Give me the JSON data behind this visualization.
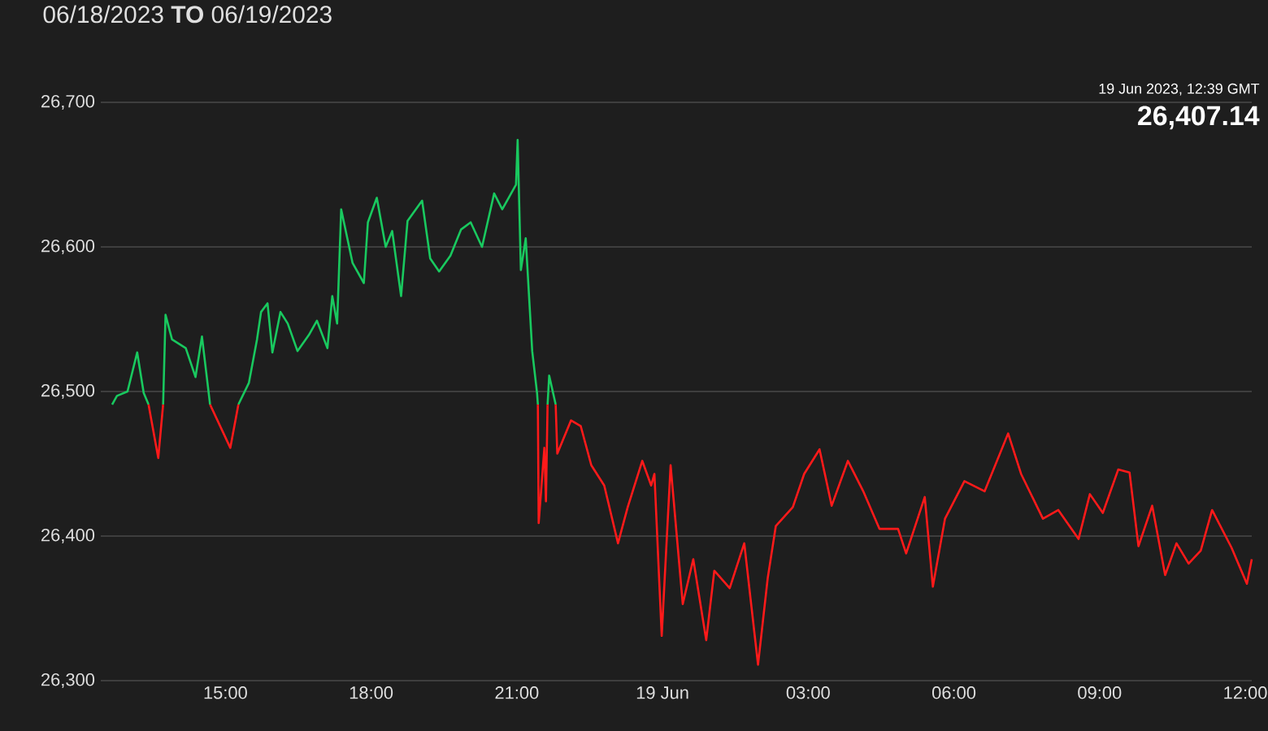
{
  "chart_data": {
    "type": "line",
    "title": "06/18/2023 **TO** 06/19/2023",
    "annotations": [
      "19 Jun 2023, 12:39 GMT",
      "26,407.14"
    ],
    "xlim": [
      "2023-06-18T12:26",
      "2023-06-19T12:08"
    ],
    "ylim": [
      26300,
      26700
    ],
    "xticks": [
      {
        "value": "2023-06-18T15:00",
        "label": "15:00"
      },
      {
        "value": "2023-06-18T18:00",
        "label": "18:00"
      },
      {
        "value": "2023-06-18T21:00",
        "label": "21:00"
      },
      {
        "value": "2023-06-19T00:00",
        "label": "19 Jun"
      },
      {
        "value": "2023-06-19T03:00",
        "label": "03:00"
      },
      {
        "value": "2023-06-19T06:00",
        "label": "06:00"
      },
      {
        "value": "2023-06-19T09:00",
        "label": "09:00"
      },
      {
        "value": "2023-06-19T12:00",
        "label": "12:00"
      }
    ],
    "yticks": [
      {
        "value": 26300,
        "label": "26,300"
      },
      {
        "value": 26400,
        "label": "26,400"
      },
      {
        "value": 26500,
        "label": "26,500"
      },
      {
        "value": 26600,
        "label": "26,600"
      },
      {
        "value": 26700,
        "label": "26,700"
      }
    ],
    "grid": "y",
    "series": [
      {
        "color": "#19c95f",
        "x": [
          "2023-06-18T12:40",
          "2023-06-18T12:46",
          "2023-06-18T12:59",
          "2023-06-18T13:11",
          "2023-06-18T13:19",
          "2023-06-18T13:25",
          "2023-06-18T13:34",
          "2023-06-18T13:43",
          "2023-06-18T13:46",
          "2023-06-18T13:54",
          "2023-06-18T14:11",
          "2023-06-18T14:23",
          "2023-06-18T14:31",
          "2023-06-18T14:41",
          "2023-06-18T14:58",
          "2023-06-18T15:16",
          "2023-06-18T15:29",
          "2023-06-18T15:39",
          "2023-06-18T15:44",
          "2023-06-18T15:52",
          "2023-06-18T15:58",
          "2023-06-18T16:08",
          "2023-06-18T16:17",
          "2023-06-18T16:29",
          "2023-06-18T16:43",
          "2023-06-18T16:53",
          "2023-06-18T17:06",
          "2023-06-18T17:12",
          "2023-06-18T17:18",
          "2023-06-18T17:23",
          "2023-06-18T17:37",
          "2023-06-18T17:51",
          "2023-06-18T17:56",
          "2023-06-18T18:07",
          "2023-06-18T18:18",
          "2023-06-18T18:26",
          "2023-06-18T18:37",
          "2023-06-18T18:45",
          "2023-06-18T19:03",
          "2023-06-18T19:13",
          "2023-06-18T19:24",
          "2023-06-18T19:38",
          "2023-06-18T19:51",
          "2023-06-18T20:03",
          "2023-06-18T20:17",
          "2023-06-18T20:32",
          "2023-06-18T20:42",
          "2023-06-18T20:59",
          "2023-06-18T21:01",
          "2023-06-18T21:05",
          "2023-06-18T21:11",
          "2023-06-18T21:19",
          "2023-06-18T21:25",
          "2023-06-18T21:26",
          "2023-06-18T21:32",
          "2023-06-18T21:38",
          "2023-06-18T21:40",
          "2023-06-18T21:48"
        ],
        "values": [
          26491,
          26497,
          26500,
          26527,
          26499,
          26491,
          null,
          26491,
          26553,
          26536,
          26530,
          26510,
          26538,
          26491,
          null,
          26491,
          26506,
          26536,
          26555,
          26561,
          26527,
          26555,
          26547,
          26528,
          26539,
          26549,
          26530,
          26566,
          26547,
          26626,
          26589,
          26575,
          26617,
          26634,
          26600,
          26611,
          26566,
          26618,
          26632,
          26592,
          26583,
          26594,
          26612,
          26617,
          26600,
          26637,
          26626,
          26643,
          26674,
          26584,
          26606,
          26528,
          26499,
          26491,
          null,
          26491,
          26511,
          26491
        ]
      },
      {
        "color": "#ff1a1a",
        "x": [
          "2023-06-18T13:25",
          "2023-06-18T13:37",
          "2023-06-18T13:43",
          "2023-06-18T14:11",
          "2023-06-18T14:41",
          "2023-06-18T15:06",
          "2023-06-18T15:16",
          "2023-06-18T18:00",
          "2023-06-18T21:26",
          "2023-06-18T21:27",
          "2023-06-18T21:34",
          "2023-06-18T21:36",
          "2023-06-18T21:38",
          "2023-06-18T21:39",
          "2023-06-18T21:48",
          "2023-06-18T21:50",
          "2023-06-18T22:07",
          "2023-06-18T22:19",
          "2023-06-18T22:32",
          "2023-06-18T22:48",
          "2023-06-18T23:05",
          "2023-06-18T23:17",
          "2023-06-18T23:35",
          "2023-06-18T23:46",
          "2023-06-18T23:50",
          "2023-06-18T23:59",
          "2023-06-19T00:10",
          "2023-06-19T00:25",
          "2023-06-19T00:38",
          "2023-06-19T00:54",
          "2023-06-19T01:04",
          "2023-06-19T01:23",
          "2023-06-19T01:41",
          "2023-06-19T01:58",
          "2023-06-19T02:10",
          "2023-06-19T02:20",
          "2023-06-19T02:41",
          "2023-06-19T02:55",
          "2023-06-19T03:14",
          "2023-06-19T03:29",
          "2023-06-19T03:49",
          "2023-06-19T04:08",
          "2023-06-19T04:28",
          "2023-06-19T04:51",
          "2023-06-19T05:01",
          "2023-06-19T05:24",
          "2023-06-19T05:34",
          "2023-06-19T05:49",
          "2023-06-19T06:13",
          "2023-06-19T06:38",
          "2023-06-19T07:07",
          "2023-06-19T07:23",
          "2023-06-19T07:50",
          "2023-06-19T08:09",
          "2023-06-19T08:34",
          "2023-06-19T08:48",
          "2023-06-19T09:04",
          "2023-06-19T09:23",
          "2023-06-19T09:37",
          "2023-06-19T09:48",
          "2023-06-19T10:05",
          "2023-06-19T10:21",
          "2023-06-19T10:35",
          "2023-06-19T10:50",
          "2023-06-19T11:05",
          "2023-06-19T11:19",
          "2023-06-19T11:43",
          "2023-06-19T12:02",
          "2023-06-19T12:08"
        ],
        "values": [
          26491,
          26454,
          26491,
          null,
          26491,
          26461,
          26491,
          null,
          26491,
          26409,
          26461,
          26424,
          26491,
          null,
          26491,
          26457,
          26480,
          26476,
          26449,
          26435,
          26395,
          26420,
          26452,
          26435,
          26443,
          26331,
          26449,
          26353,
          26384,
          26328,
          26376,
          26364,
          26395,
          26311,
          26371,
          26407,
          26420,
          26443,
          26460,
          26421,
          26452,
          26431,
          26405,
          26405,
          26388,
          26427,
          26365,
          26412,
          26438,
          26431,
          26471,
          26443,
          26412,
          26418,
          26398,
          26429,
          26416,
          26446,
          26444,
          26393,
          26421,
          26373,
          26395,
          26381,
          26390,
          26418,
          26392,
          26367,
          26384
        ]
      }
    ]
  }
}
